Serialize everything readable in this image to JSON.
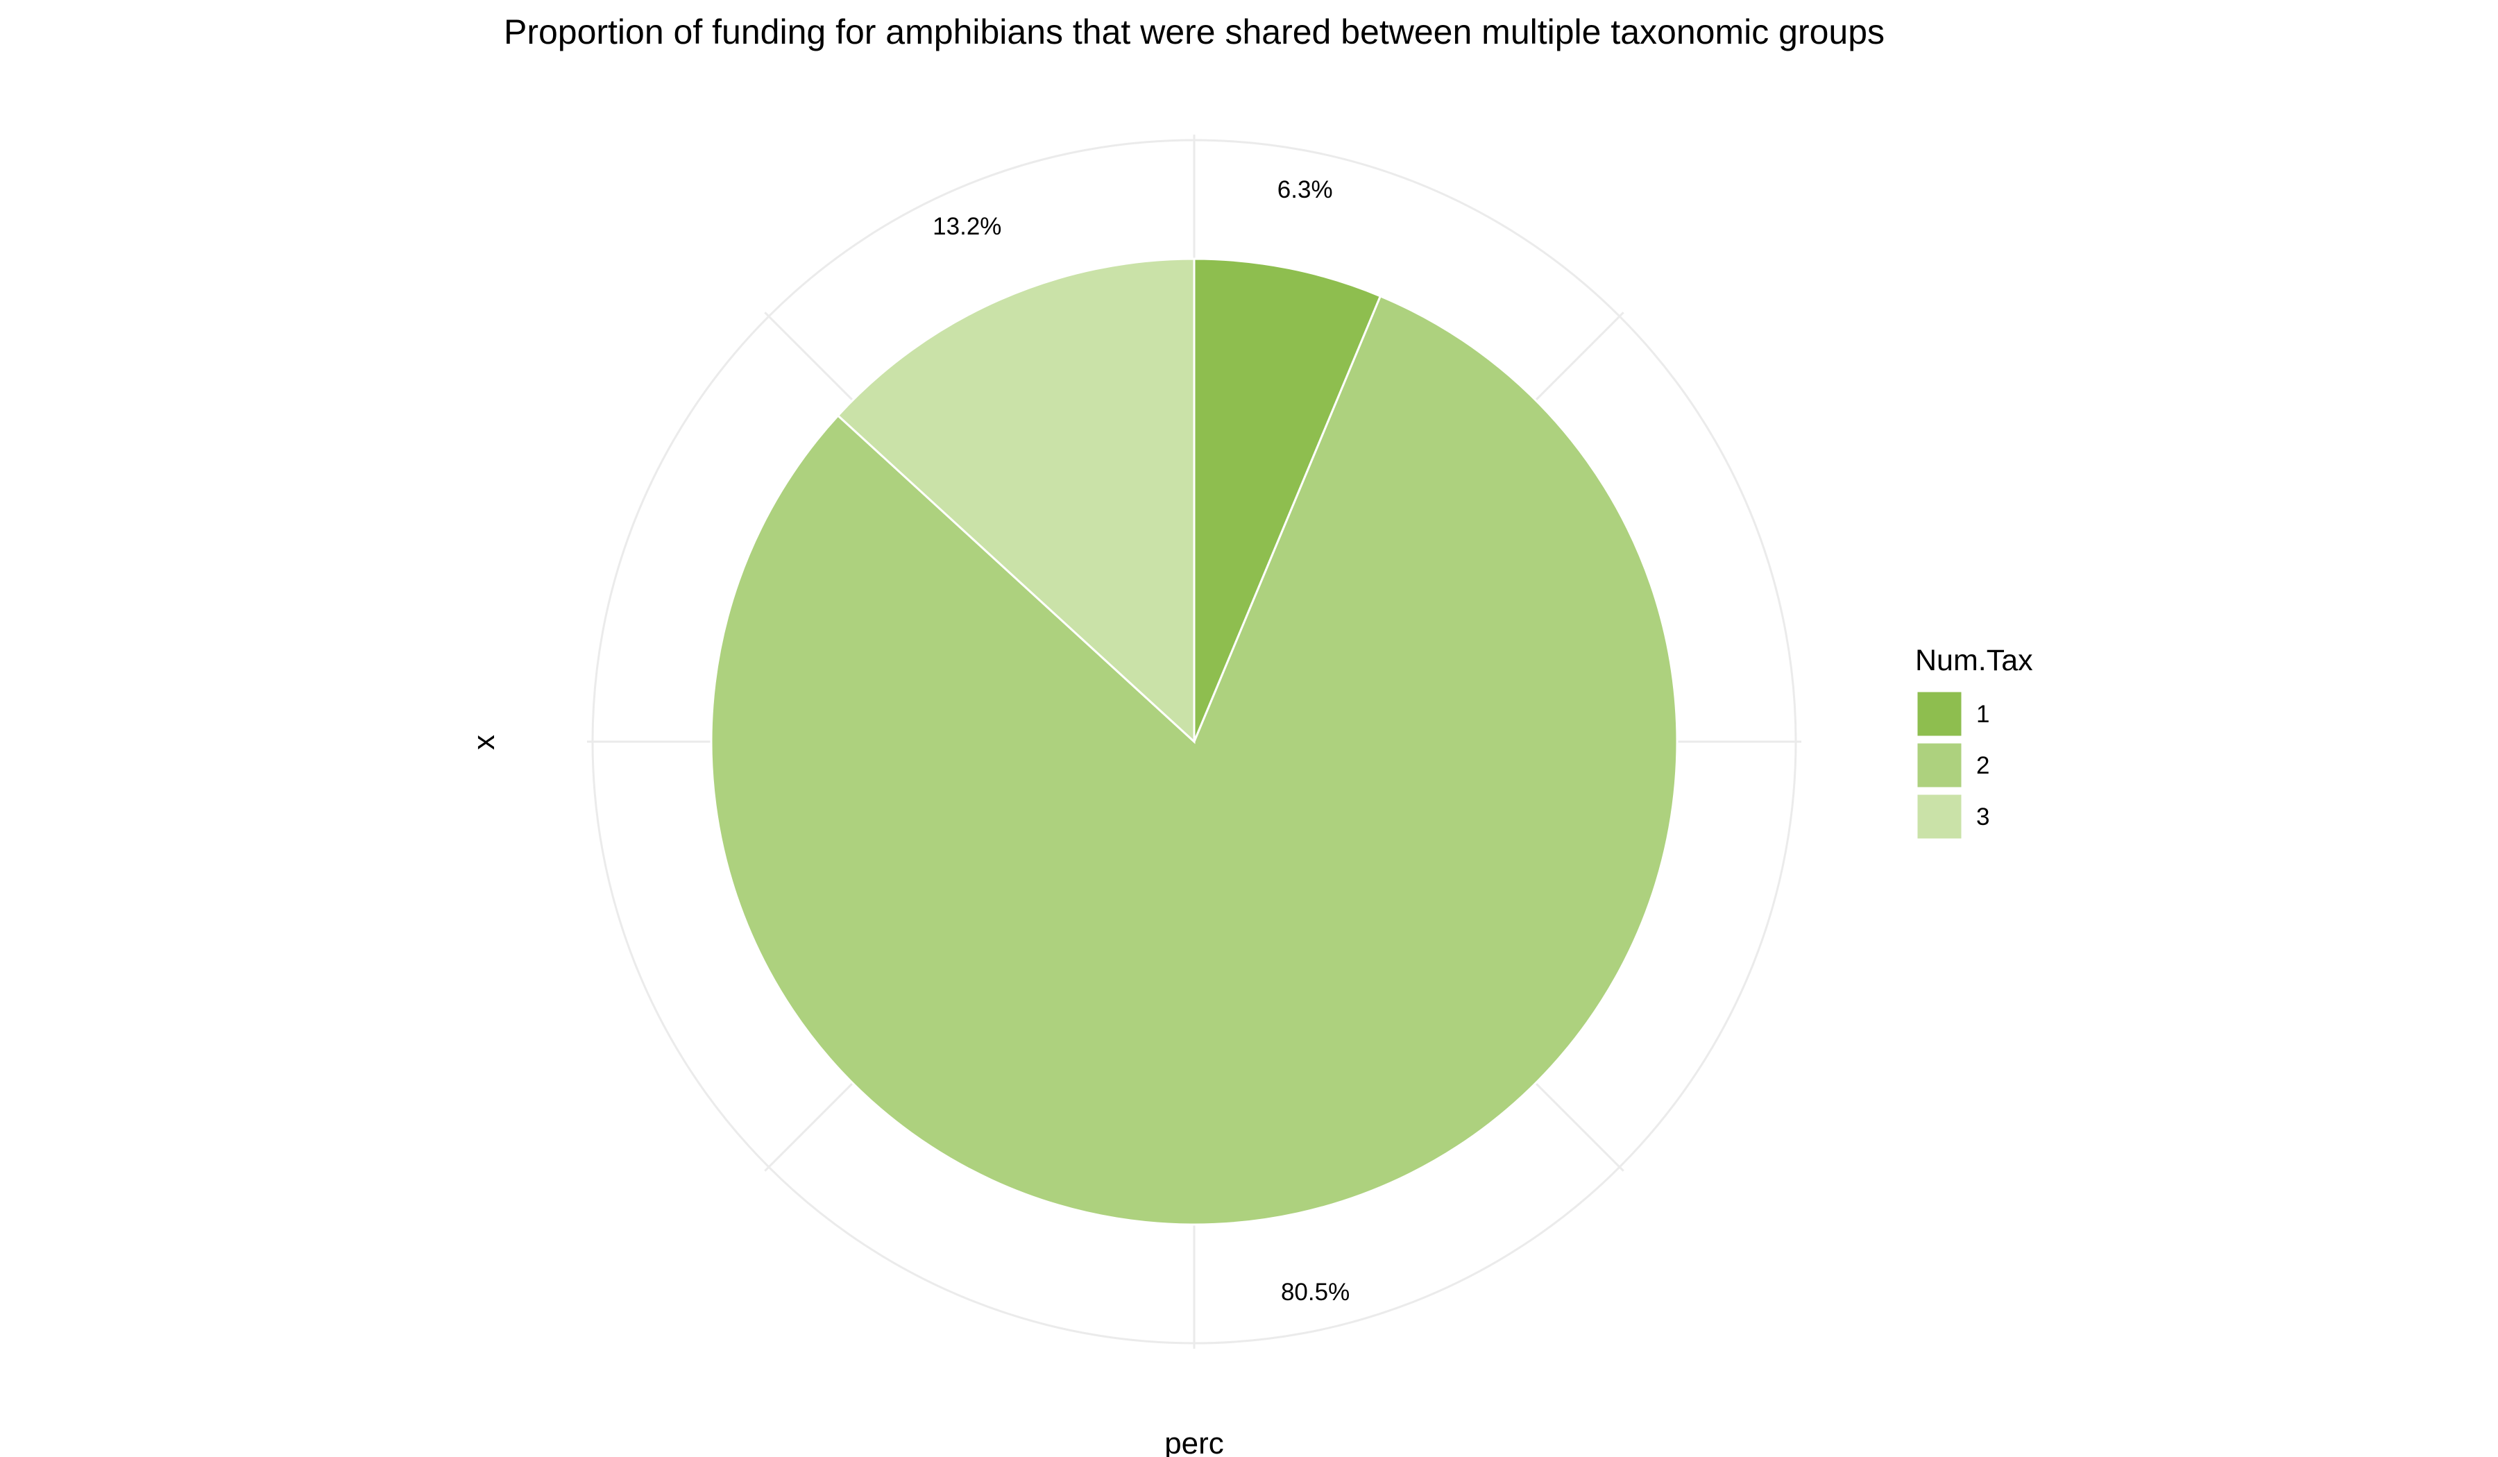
{
  "chart_data": {
    "type": "pie",
    "title": "Proportion of funding for amphibians that were shared between multiple taxonomic groups",
    "xlabel": "perc",
    "ylabel": "x",
    "categories": [
      "1",
      "2",
      "3"
    ],
    "values": [
      6.3,
      80.5,
      13.2
    ],
    "labels": [
      "6.3%",
      "80.5%",
      "13.2%"
    ],
    "colors": [
      "#8ebe4f",
      "#add17e",
      "#cae2a8"
    ],
    "legend": {
      "title": "Num.Tax",
      "position": "right",
      "entries": [
        "1",
        "2",
        "3"
      ]
    },
    "grid": true,
    "grid_color": "#ebebeb",
    "slice_border_color": "#ffffff"
  }
}
